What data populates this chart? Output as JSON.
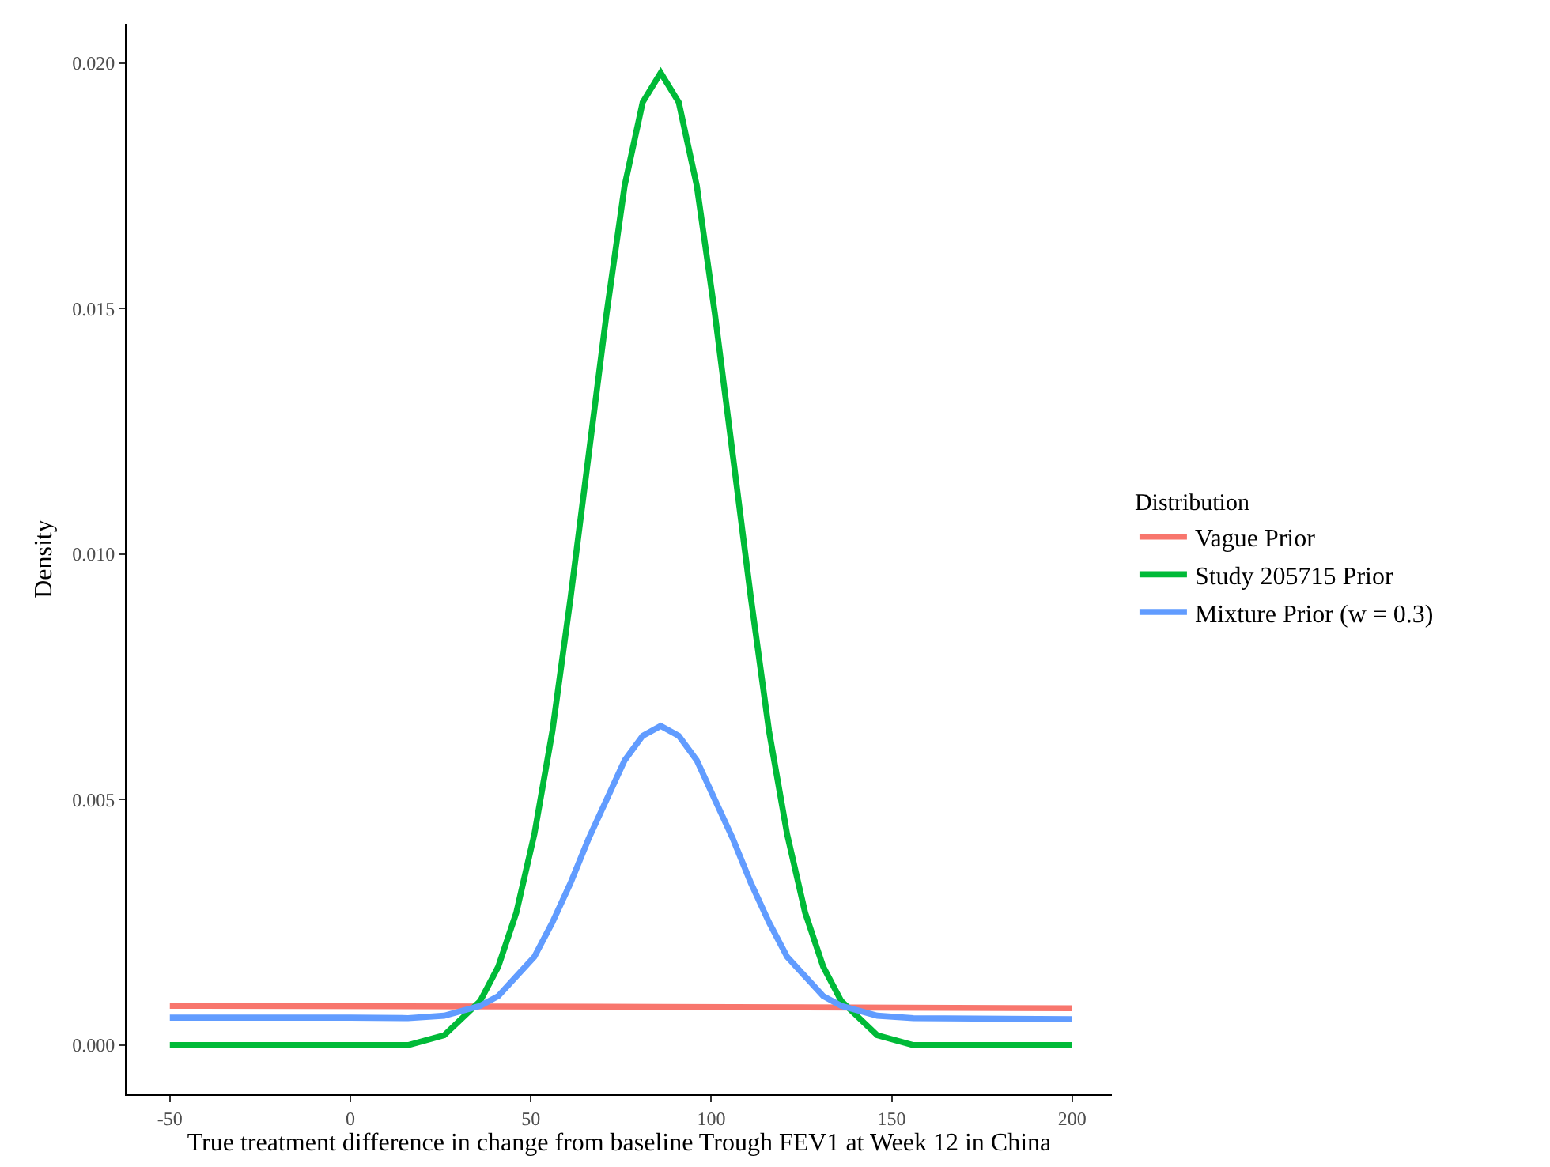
{
  "chart_data": {
    "type": "line",
    "xlabel": "True treatment difference in change from baseline Trough FEV1 at Week 12 in China",
    "ylabel": "Density",
    "legend_title": "Distribution",
    "legend": "right",
    "grid": false,
    "marker": "none",
    "line_style": "solid",
    "xlim": [
      -62,
      211
    ],
    "xticks": [
      -50,
      0,
      50,
      100,
      150,
      200
    ],
    "ylim": [
      -0.001,
      0.0208
    ],
    "yticks": [
      {
        "value": 0,
        "label": "0.000"
      },
      {
        "value": 0.005,
        "label": "0.005"
      },
      {
        "value": 0.01,
        "label": "0.010"
      },
      {
        "value": 0.015,
        "label": "0.015"
      },
      {
        "value": 0.02,
        "label": "0.020"
      }
    ],
    "series": [
      {
        "name": "Vague Prior",
        "color": "#f8766d",
        "x": [
          -50,
          86,
          200
        ],
        "values": [
          0.0008,
          0.00078,
          0.00075
        ]
      },
      {
        "name": "Study 205715 Prior",
        "color": "#00ba38",
        "x": [
          -50,
          0,
          16,
          26,
          36,
          41,
          46,
          51,
          56,
          61,
          66,
          71,
          76,
          81,
          86,
          91,
          96,
          101,
          106,
          111,
          116,
          121,
          126,
          131,
          136,
          146,
          156,
          200
        ],
        "values": [
          0,
          0,
          0,
          0.0002,
          0.0009,
          0.0016,
          0.0027,
          0.0043,
          0.0064,
          0.0091,
          0.012,
          0.0149,
          0.0175,
          0.0192,
          0.0198,
          0.0192,
          0.0175,
          0.0149,
          0.012,
          0.0091,
          0.0064,
          0.0043,
          0.0027,
          0.0016,
          0.0009,
          0.0002,
          0,
          0
        ]
      },
      {
        "name": "Mixture Prior (w = 0.3)",
        "color": "#619cff",
        "x": [
          -50,
          0,
          16,
          26,
          36,
          41,
          46,
          51,
          56,
          61,
          66,
          71,
          76,
          81,
          86,
          91,
          96,
          101,
          106,
          111,
          116,
          121,
          126,
          131,
          136,
          146,
          156,
          200
        ],
        "values": [
          0.00056,
          0.00056,
          0.00055,
          0.0006,
          0.0008,
          0.001,
          0.0014,
          0.0018,
          0.0025,
          0.0033,
          0.0042,
          0.005,
          0.0058,
          0.0063,
          0.0065,
          0.0063,
          0.0058,
          0.005,
          0.0042,
          0.0033,
          0.0025,
          0.0018,
          0.0014,
          0.001,
          0.0008,
          0.0006,
          0.00055,
          0.00053
        ]
      }
    ]
  }
}
